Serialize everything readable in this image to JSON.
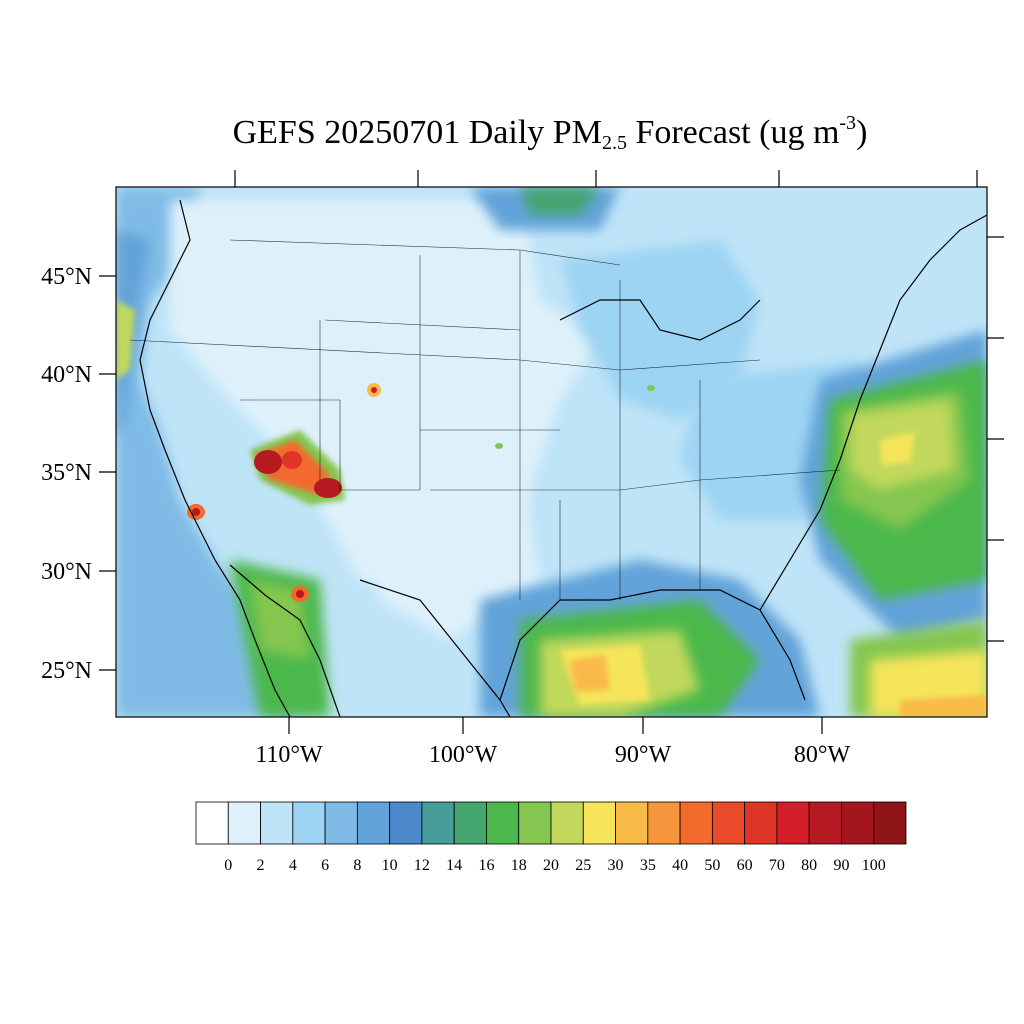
{
  "title": {
    "main": "GEFS 20250701 Daily PM",
    "sub": "2.5",
    "mid": " Forecast (ug m",
    "sup": "-3",
    "end": ")"
  },
  "map": {
    "lat_labels": [
      "45°N",
      "40°N",
      "35°N",
      "30°N",
      "25°N"
    ],
    "lon_labels": [
      "110°W",
      "100°W",
      "90°W",
      "80°W"
    ]
  },
  "colorbar": {
    "labels": [
      "0",
      "2",
      "4",
      "6",
      "8",
      "10",
      "12",
      "14",
      "16",
      "18",
      "20",
      "25",
      "30",
      "35",
      "40",
      "50",
      "60",
      "70",
      "80",
      "90",
      "100"
    ],
    "colors": [
      "#ffffff",
      "#def1fb",
      "#bfe4f7",
      "#9dd4f3",
      "#7fbbe6",
      "#62a3d9",
      "#4a88c9",
      "#479d9a",
      "#45a56f",
      "#4cb84c",
      "#84c650",
      "#c2d85c",
      "#f6e55a",
      "#f8bb48",
      "#f7953c",
      "#f36a2d",
      "#e84a2a",
      "#de3527",
      "#d21e28",
      "#b51a22",
      "#a3161e",
      "#8e1418"
    ]
  }
}
